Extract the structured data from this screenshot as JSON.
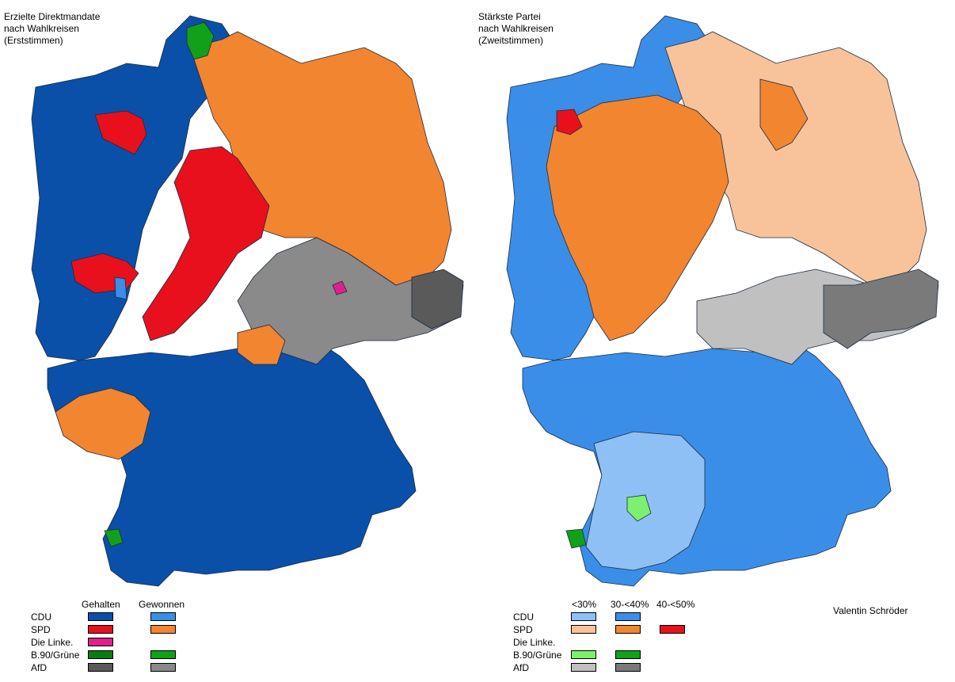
{
  "left_map": {
    "title": "Erzielte Direktmandate\nnach Wahlkreisen\n(Erststimmen)",
    "legend_headers": [
      "Gehalten",
      "Gewonnen"
    ],
    "parties": [
      "CDU",
      "SPD",
      "Die Linke.",
      "B.90/Grüne",
      "AfD"
    ],
    "colors": {
      "cdu_held": "#0a50a8",
      "cdu_won": "#3a8ee8",
      "spd_held": "#e8101c",
      "spd_won": "#f28530",
      "linke_held": "#e0208a",
      "gruene_held": "#0b7a16",
      "gruene_won": "#12a01a",
      "afd_held": "#5a5a5a",
      "afd_won": "#8a8a8a"
    }
  },
  "right_map": {
    "title": "Stärkste Partei\nnach Wahlkreisen\n(Zweitstimmen)",
    "legend_headers": [
      "<30%",
      "30-<40%",
      "40-<50%"
    ],
    "parties": [
      "CDU",
      "SPD",
      "Die Linke.",
      "B.90/Grüne",
      "AfD"
    ],
    "colors": {
      "cdu_lt30": "#8fc0f5",
      "cdu_30_40": "#3a8ee8",
      "spd_lt30": "#f8c39a",
      "spd_30_40": "#f28530",
      "spd_40_50": "#e8101c",
      "gruene_lt30": "#7ef070",
      "gruene_30_40": "#12a01a",
      "afd_lt30": "#c0c0c0",
      "afd_30_40": "#7a7a7a"
    }
  },
  "credit": "Valentin Schröder"
}
